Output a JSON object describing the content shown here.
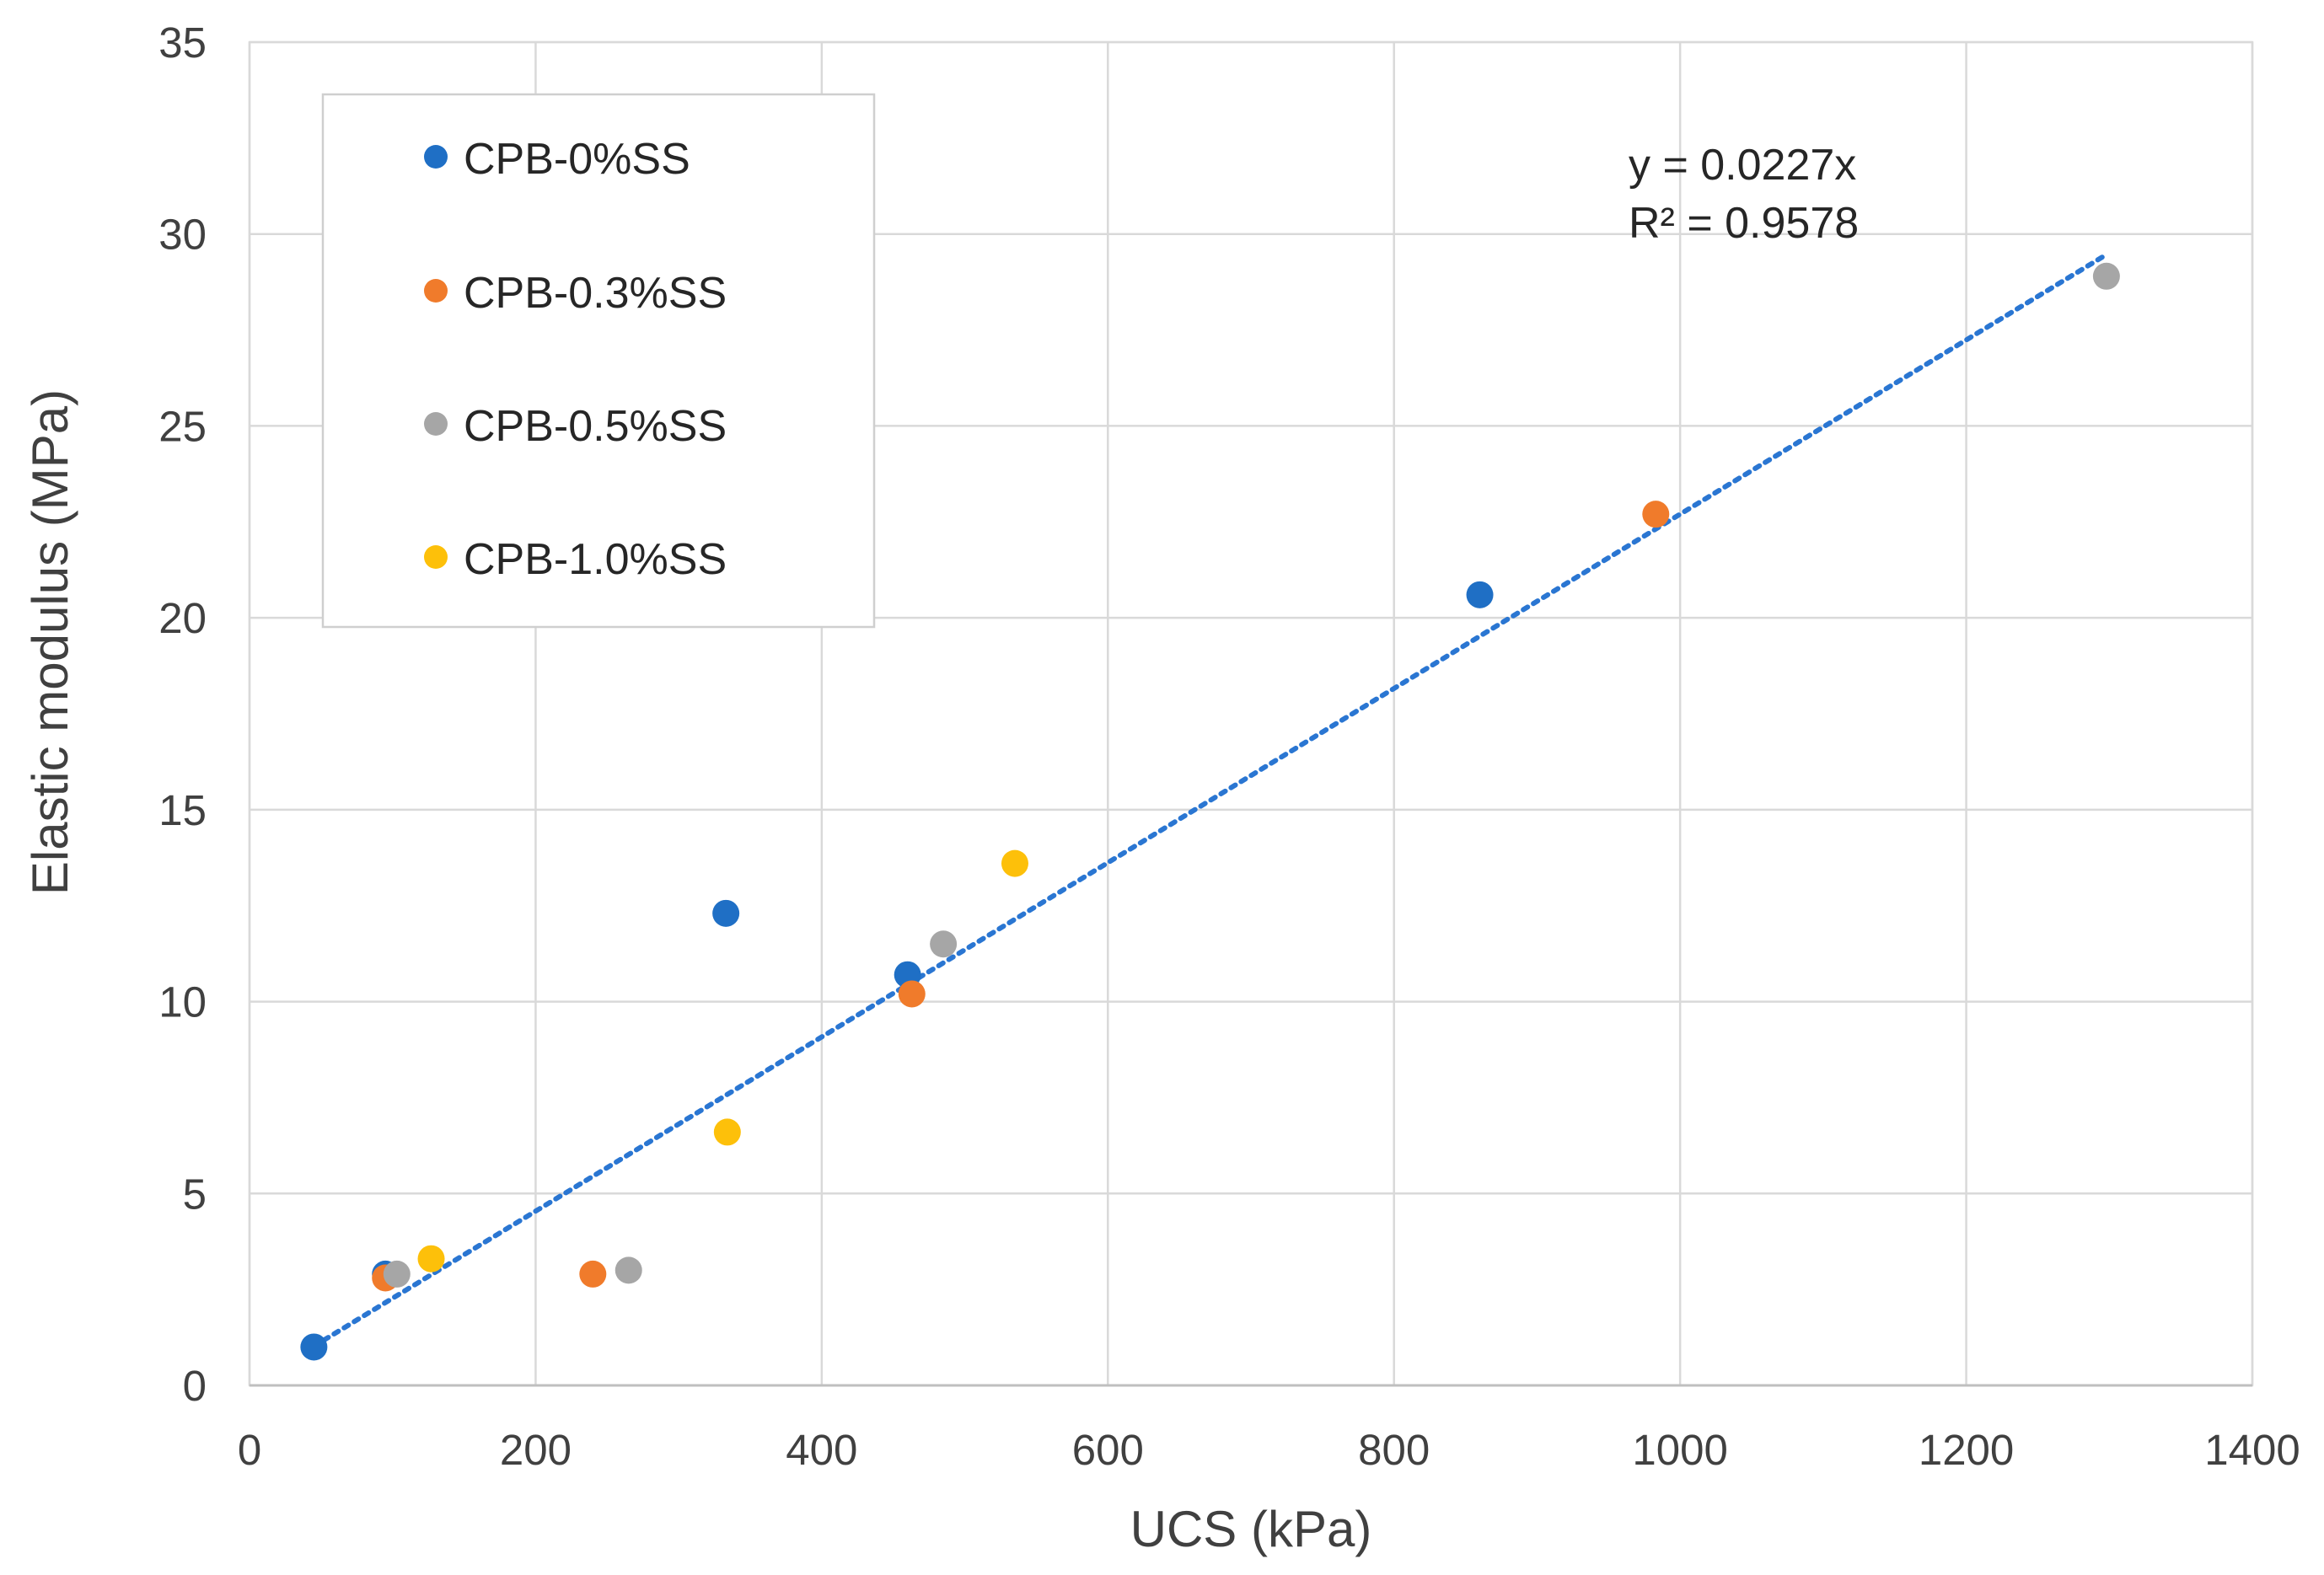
{
  "chart_data": {
    "type": "scatter",
    "title": "",
    "xlabel": "UCS (kPa)",
    "ylabel": "Elastic modulus (MPa)",
    "xlim": [
      0,
      1400
    ],
    "ylim": [
      0,
      35
    ],
    "x_ticks": [
      "0",
      "200",
      "400",
      "600",
      "800",
      "1000",
      "1200",
      "1400"
    ],
    "y_ticks": [
      "0",
      "5",
      "10",
      "15",
      "20",
      "25",
      "30",
      "35"
    ],
    "grid": true,
    "legend_position": "top-left",
    "series": [
      {
        "name": "CPB-0%SS",
        "color": "#1f6fc5",
        "points": [
          [
            45,
            1.0
          ],
          [
            95,
            2.9
          ],
          [
            333,
            12.3
          ],
          [
            460,
            10.7
          ],
          [
            860,
            20.6
          ]
        ]
      },
      {
        "name": "CPB-0.3%SS",
        "color": "#f07b2b",
        "points": [
          [
            95,
            2.8
          ],
          [
            240,
            2.9
          ],
          [
            463,
            10.2
          ],
          [
            983,
            22.7
          ]
        ]
      },
      {
        "name": "CPB-0.5%SS",
        "color": "#a6a6a6",
        "points": [
          [
            103,
            2.9
          ],
          [
            265,
            3.0
          ],
          [
            485,
            11.5
          ],
          [
            1298,
            28.9
          ]
        ]
      },
      {
        "name": "CPB-1.0%SS",
        "color": "#fdc00a",
        "points": [
          [
            127,
            3.3
          ],
          [
            334,
            6.6
          ],
          [
            535,
            13.6
          ]
        ]
      }
    ],
    "trendline": {
      "type": "linear-through-origin",
      "slope": 0.0227,
      "x_range": [
        45,
        1298
      ],
      "color": "#2a76d2",
      "style": "dotted",
      "equation": "y = 0.0227x",
      "r_squared": "R² = 0.9578"
    }
  }
}
